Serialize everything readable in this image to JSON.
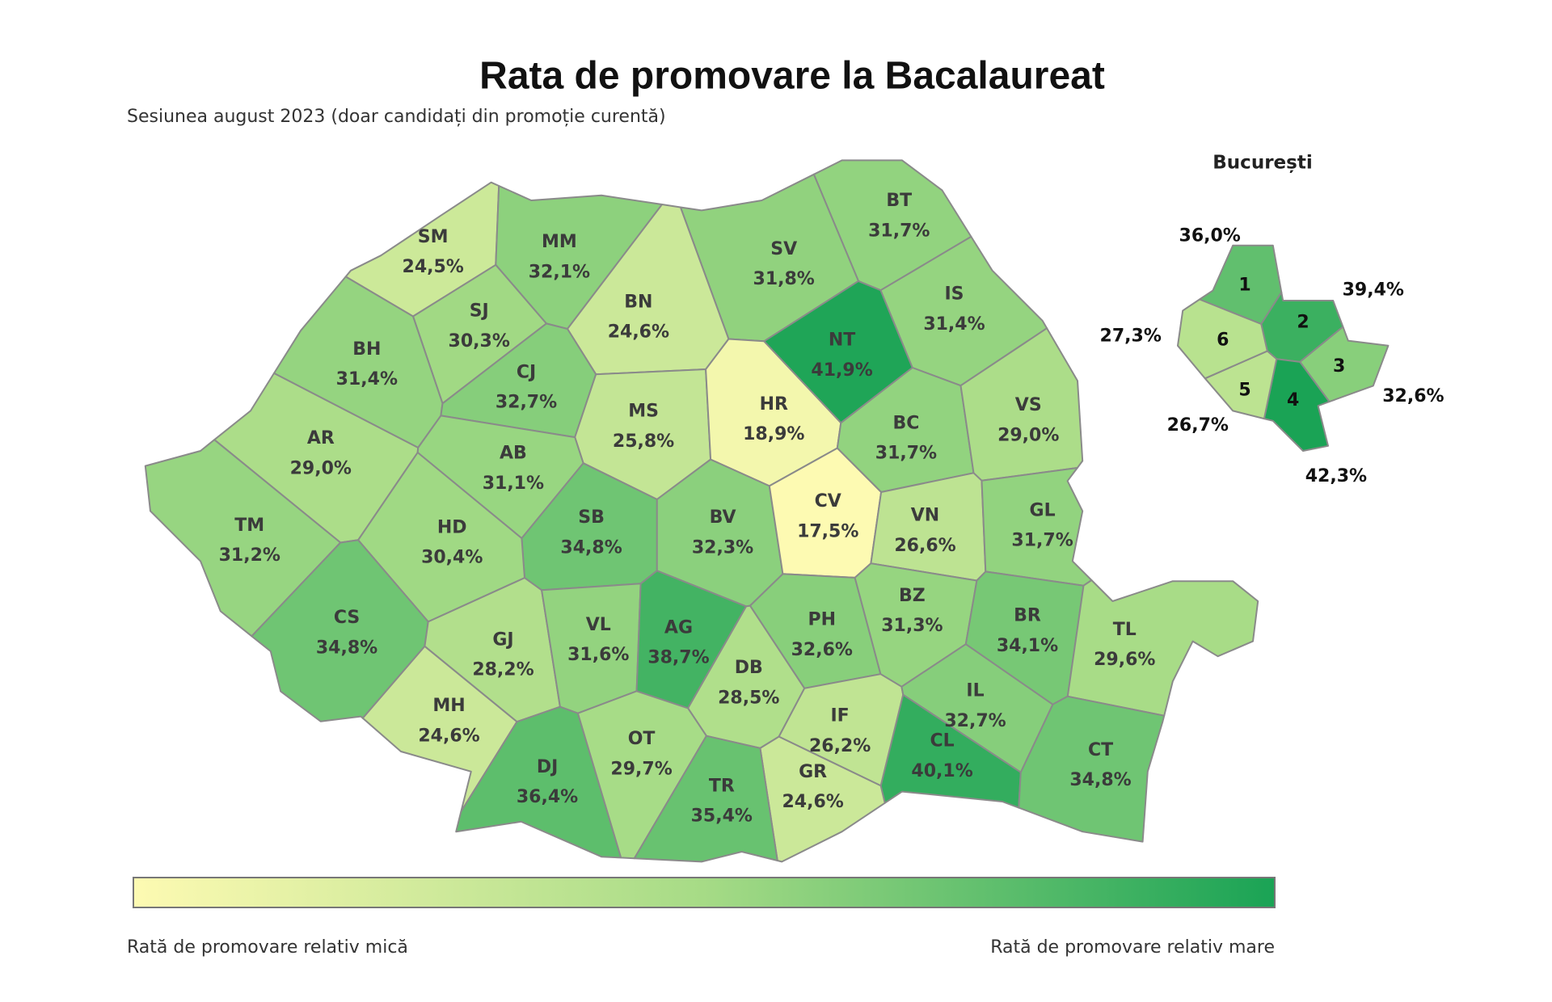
{
  "title": "Rata de promovare la Bacalaureat",
  "subtitle": "Sesiunea august 2023 (doar candidați din promoție curentă)",
  "counties": [
    {
      "code": "SM",
      "value": 24.5,
      "value_label": "24,5%"
    },
    {
      "code": "MM",
      "value": 32.1,
      "value_label": "32,1%"
    },
    {
      "code": "BT",
      "value": 31.7,
      "value_label": "31,7%"
    },
    {
      "code": "SV",
      "value": 31.8,
      "value_label": "31,8%"
    },
    {
      "code": "SJ",
      "value": 30.3,
      "value_label": "30,3%"
    },
    {
      "code": "BN",
      "value": 24.6,
      "value_label": "24,6%"
    },
    {
      "code": "NT",
      "value": 41.9,
      "value_label": "41,9%"
    },
    {
      "code": "IS",
      "value": 31.4,
      "value_label": "31,4%"
    },
    {
      "code": "BH",
      "value": 31.4,
      "value_label": "31,4%"
    },
    {
      "code": "CJ",
      "value": 32.7,
      "value_label": "32,7%"
    },
    {
      "code": "MS",
      "value": 25.8,
      "value_label": "25,8%"
    },
    {
      "code": "HR",
      "value": 18.9,
      "value_label": "18,9%"
    },
    {
      "code": "BC",
      "value": 31.7,
      "value_label": "31,7%"
    },
    {
      "code": "VS",
      "value": 29.0,
      "value_label": "29,0%"
    },
    {
      "code": "AR",
      "value": 29.0,
      "value_label": "29,0%"
    },
    {
      "code": "AB",
      "value": 31.1,
      "value_label": "31,1%"
    },
    {
      "code": "SB",
      "value": 34.8,
      "value_label": "34,8%"
    },
    {
      "code": "BV",
      "value": 32.3,
      "value_label": "32,3%"
    },
    {
      "code": "CV",
      "value": 17.5,
      "value_label": "17,5%"
    },
    {
      "code": "VN",
      "value": 26.6,
      "value_label": "26,6%"
    },
    {
      "code": "GL",
      "value": 31.7,
      "value_label": "31,7%"
    },
    {
      "code": "TM",
      "value": 31.2,
      "value_label": "31,2%"
    },
    {
      "code": "HD",
      "value": 30.4,
      "value_label": "30,4%"
    },
    {
      "code": "CS",
      "value": 34.8,
      "value_label": "34,8%"
    },
    {
      "code": "GJ",
      "value": 28.2,
      "value_label": "28,2%"
    },
    {
      "code": "VL",
      "value": 31.6,
      "value_label": "31,6%"
    },
    {
      "code": "AG",
      "value": 38.7,
      "value_label": "38,7%"
    },
    {
      "code": "PH",
      "value": 32.6,
      "value_label": "32,6%"
    },
    {
      "code": "BZ",
      "value": 31.3,
      "value_label": "31,3%"
    },
    {
      "code": "BR",
      "value": 34.1,
      "value_label": "34,1%"
    },
    {
      "code": "TL",
      "value": 29.6,
      "value_label": "29,6%"
    },
    {
      "code": "MH",
      "value": 24.6,
      "value_label": "24,6%"
    },
    {
      "code": "DB",
      "value": 28.5,
      "value_label": "28,5%"
    },
    {
      "code": "IF",
      "value": 26.2,
      "value_label": "26,2%"
    },
    {
      "code": "GR",
      "value": 24.6,
      "value_label": "24,6%"
    },
    {
      "code": "IL",
      "value": 32.7,
      "value_label": "32,7%"
    },
    {
      "code": "CL",
      "value": 40.1,
      "value_label": "40,1%"
    },
    {
      "code": "CT",
      "value": 34.8,
      "value_label": "34,8%"
    },
    {
      "code": "DJ",
      "value": 36.4,
      "value_label": "36,4%"
    },
    {
      "code": "OT",
      "value": 29.7,
      "value_label": "29,7%"
    },
    {
      "code": "TR",
      "value": 35.4,
      "value_label": "35,4%"
    }
  ],
  "bucharest": {
    "title": "București",
    "sectors": [
      {
        "name": "1",
        "value": 36.0,
        "value_label": "36,0%"
      },
      {
        "name": "2",
        "value": 39.4,
        "value_label": "39,4%"
      },
      {
        "name": "3",
        "value": 32.6,
        "value_label": "32,6%"
      },
      {
        "name": "4",
        "value": 42.3,
        "value_label": "42,3%"
      },
      {
        "name": "5",
        "value": 26.7,
        "value_label": "26,7%"
      },
      {
        "name": "6",
        "value": 27.3,
        "value_label": "27,3%"
      }
    ]
  },
  "legend": {
    "low": "Rată de promovare relativ mică",
    "high": "Rată de promovare relativ mare",
    "colors": [
      "#fdfab2",
      "#a6db86",
      "#1aa355"
    ]
  }
}
